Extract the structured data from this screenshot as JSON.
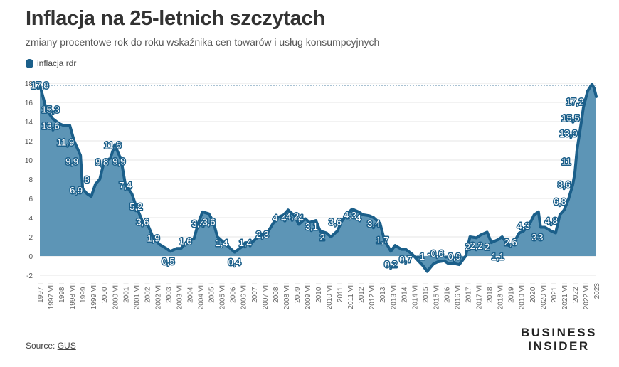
{
  "header": {
    "title": "Inflacja na 25-letnich szczytach",
    "subtitle": "zmiany procentowe rok do roku wskaźnika cen towarów i usług konsumpcyjnych",
    "legend_label": "inflacja rdr"
  },
  "footer": {
    "source_prefix": "Source: ",
    "source_link": "GUS",
    "brand_line1": "BUSINESS",
    "brand_line2": "INSIDER"
  },
  "colors": {
    "area_fill": "#5d95b6",
    "line": "#1b5f8a",
    "label_halo": "#1b5f8a",
    "grid": "#e6e6e6",
    "reference_line": "#1b5f8a"
  },
  "chart_data": {
    "type": "area",
    "ylim": [
      -2,
      18
    ],
    "yticks": [
      -2,
      0,
      2,
      4,
      6,
      8,
      10,
      12,
      14,
      16,
      18
    ],
    "reference_value": 17.8,
    "xlim": [
      1997.0,
      2023.0
    ],
    "grid": true,
    "x_tick_labels": [
      "1997 I",
      "1997 VII",
      "1998 I",
      "1998 VII",
      "1999 I",
      "1999 VII",
      "2000 I",
      "2000 VII",
      "2001 I",
      "2001 VII",
      "2002 I",
      "2002 VII",
      "2003 I",
      "2003 VII",
      "2004 I",
      "2004 VII",
      "2005 I",
      "2005 VII",
      "2006 I",
      "2006 VII",
      "2007 I",
      "2007 VII",
      "2008 I",
      "2008 VII",
      "2009 I",
      "2009 VII",
      "2010 I",
      "2010 VII",
      "2011 I",
      "2011 VII",
      "2012 I",
      "2012 VII",
      "2013 I",
      "2013 VII",
      "2014 I",
      "2014 VII",
      "2015 I",
      "2015 VII",
      "2016 I",
      "2016 VII",
      "2017 I",
      "2017 VII",
      "2018 I",
      "2018 VII",
      "2019 I",
      "2019 VII",
      "2020 I",
      "2020 VII",
      "2021 I",
      "2021 VII",
      "2022 I",
      "2022 VII",
      "2023"
    ],
    "series": [
      {
        "name": "inflacja rdr",
        "points": [
          [
            1997.0,
            17.8
          ],
          [
            1997.3,
            15.3
          ],
          [
            1997.6,
            14.3
          ],
          [
            1997.9,
            13.8
          ],
          [
            1998.1,
            13.6
          ],
          [
            1998.4,
            13.6
          ],
          [
            1998.6,
            12.0
          ],
          [
            1998.9,
            10.5
          ],
          [
            1999.0,
            7.0
          ],
          [
            1999.2,
            6.5
          ],
          [
            1999.4,
            6.2
          ],
          [
            1999.6,
            7.5
          ],
          [
            1999.8,
            8.0
          ],
          [
            2000.0,
            9.8
          ],
          [
            2000.3,
            10.2
          ],
          [
            2000.5,
            11.6
          ],
          [
            2000.8,
            10.0
          ],
          [
            2001.0,
            7.4
          ],
          [
            2001.3,
            6.5
          ],
          [
            2001.5,
            5.2
          ],
          [
            2001.8,
            3.6
          ],
          [
            2002.0,
            3.5
          ],
          [
            2002.3,
            1.9
          ],
          [
            2002.6,
            1.2
          ],
          [
            2002.9,
            0.8
          ],
          [
            2003.1,
            0.5
          ],
          [
            2003.4,
            0.8
          ],
          [
            2003.6,
            0.8
          ],
          [
            2003.9,
            1.6
          ],
          [
            2004.2,
            1.8
          ],
          [
            2004.4,
            3.4
          ],
          [
            2004.6,
            4.6
          ],
          [
            2004.9,
            4.4
          ],
          [
            2005.1,
            3.6
          ],
          [
            2005.3,
            2.0
          ],
          [
            2005.6,
            1.4
          ],
          [
            2005.9,
            0.8
          ],
          [
            2006.1,
            0.4
          ],
          [
            2006.4,
            0.9
          ],
          [
            2006.6,
            1.4
          ],
          [
            2006.9,
            1.4
          ],
          [
            2007.1,
            1.8
          ],
          [
            2007.4,
            2.3
          ],
          [
            2007.6,
            2.3
          ],
          [
            2007.9,
            3.4
          ],
          [
            2008.1,
            4.0
          ],
          [
            2008.4,
            4.3
          ],
          [
            2008.6,
            4.8
          ],
          [
            2008.9,
            4.2
          ],
          [
            2009.1,
            3.3
          ],
          [
            2009.4,
            3.9
          ],
          [
            2009.6,
            3.5
          ],
          [
            2009.9,
            3.7
          ],
          [
            2010.1,
            2.6
          ],
          [
            2010.4,
            2.4
          ],
          [
            2010.6,
            2.0
          ],
          [
            2010.9,
            2.6
          ],
          [
            2011.1,
            3.6
          ],
          [
            2011.4,
            4.5
          ],
          [
            2011.6,
            4.9
          ],
          [
            2011.9,
            4.6
          ],
          [
            2012.1,
            4.3
          ],
          [
            2012.4,
            4.2
          ],
          [
            2012.6,
            4.0
          ],
          [
            2012.9,
            3.4
          ],
          [
            2013.1,
            1.7
          ],
          [
            2013.4,
            0.5
          ],
          [
            2013.6,
            1.1
          ],
          [
            2013.9,
            0.7
          ],
          [
            2014.1,
            0.7
          ],
          [
            2014.4,
            0.2
          ],
          [
            2014.6,
            -0.3
          ],
          [
            2014.9,
            -1.0
          ],
          [
            2015.1,
            -1.6
          ],
          [
            2015.4,
            -0.8
          ],
          [
            2015.6,
            -0.6
          ],
          [
            2015.9,
            -0.5
          ],
          [
            2016.1,
            -0.8
          ],
          [
            2016.4,
            -0.8
          ],
          [
            2016.6,
            -0.9
          ],
          [
            2016.9,
            0.0
          ],
          [
            2017.1,
            2.0
          ],
          [
            2017.4,
            1.9
          ],
          [
            2017.6,
            2.2
          ],
          [
            2017.9,
            2.5
          ],
          [
            2018.1,
            1.4
          ],
          [
            2018.4,
            1.7
          ],
          [
            2018.6,
            2.0
          ],
          [
            2018.9,
            1.1
          ],
          [
            2019.1,
            1.2
          ],
          [
            2019.4,
            2.4
          ],
          [
            2019.6,
            2.6
          ],
          [
            2019.9,
            3.4
          ],
          [
            2020.1,
            4.3
          ],
          [
            2020.3,
            4.6
          ],
          [
            2020.4,
            3.0
          ],
          [
            2020.6,
            3.0
          ],
          [
            2020.9,
            2.6
          ],
          [
            2021.1,
            2.4
          ],
          [
            2021.3,
            4.3
          ],
          [
            2021.5,
            4.8
          ],
          [
            2021.7,
            5.9
          ],
          [
            2021.9,
            7.4
          ],
          [
            2022.0,
            8.6
          ],
          [
            2022.1,
            11.0
          ],
          [
            2022.3,
            13.9
          ],
          [
            2022.4,
            15.5
          ],
          [
            2022.6,
            17.2
          ],
          [
            2022.8,
            17.9
          ],
          [
            2022.9,
            17.5
          ],
          [
            2023.0,
            16.6
          ]
        ],
        "value_labels": [
          {
            "x": 1997.0,
            "y": 17.8,
            "text": "17,8"
          },
          {
            "x": 1997.5,
            "y": 15.3,
            "text": "15,3"
          },
          {
            "x": 1997.5,
            "y": 13.6,
            "text": "13,6"
          },
          {
            "x": 1998.2,
            "y": 11.9,
            "text": "11,9"
          },
          {
            "x": 1998.5,
            "y": 9.9,
            "text": "9,9"
          },
          {
            "x": 1998.7,
            "y": 6.9,
            "text": "6,9"
          },
          {
            "x": 1999.2,
            "y": 8.0,
            "text": "8"
          },
          {
            "x": 1999.9,
            "y": 9.8,
            "text": "9,8"
          },
          {
            "x": 2000.4,
            "y": 11.6,
            "text": "11,6"
          },
          {
            "x": 2000.7,
            "y": 9.9,
            "text": "9,9"
          },
          {
            "x": 2001.0,
            "y": 7.4,
            "text": "7,4"
          },
          {
            "x": 2001.5,
            "y": 5.2,
            "text": "5,2"
          },
          {
            "x": 2001.8,
            "y": 3.6,
            "text": "3,6"
          },
          {
            "x": 2002.3,
            "y": 1.9,
            "text": "1,9"
          },
          {
            "x": 2003.0,
            "y": -0.5,
            "text": "0,5"
          },
          {
            "x": 2003.8,
            "y": 1.6,
            "text": "1,6"
          },
          {
            "x": 2004.4,
            "y": 3.4,
            "text": "3,4"
          },
          {
            "x": 2004.9,
            "y": 3.6,
            "text": "3,6"
          },
          {
            "x": 2005.5,
            "y": 1.4,
            "text": "1,4"
          },
          {
            "x": 2006.1,
            "y": -0.6,
            "text": "0,4"
          },
          {
            "x": 2006.6,
            "y": 1.4,
            "text": "1,4"
          },
          {
            "x": 2007.4,
            "y": 2.3,
            "text": "2,3"
          },
          {
            "x": 2008.0,
            "y": 4.0,
            "text": "4"
          },
          {
            "x": 2008.4,
            "y": 4.0,
            "text": "4"
          },
          {
            "x": 2008.8,
            "y": 4.2,
            "text": "4,2"
          },
          {
            "x": 2009.2,
            "y": 4.0,
            "text": "4"
          },
          {
            "x": 2009.7,
            "y": 3.1,
            "text": "3,1"
          },
          {
            "x": 2010.2,
            "y": 2.0,
            "text": "2"
          },
          {
            "x": 2010.8,
            "y": 3.6,
            "text": "3,6"
          },
          {
            "x": 2011.5,
            "y": 4.3,
            "text": "4,3"
          },
          {
            "x": 2011.9,
            "y": 4.0,
            "text": "4"
          },
          {
            "x": 2012.6,
            "y": 3.4,
            "text": "3,4"
          },
          {
            "x": 2013.0,
            "y": 1.7,
            "text": "1,7"
          },
          {
            "x": 2013.4,
            "y": -0.8,
            "text": "0,2"
          },
          {
            "x": 2014.1,
            "y": -0.3,
            "text": "0,7"
          },
          {
            "x": 2014.8,
            "y": 0.0,
            "text": "-1"
          },
          {
            "x": 2015.5,
            "y": 0.3,
            "text": "-0,6"
          },
          {
            "x": 2016.3,
            "y": 0.0,
            "text": "-0,9"
          },
          {
            "x": 2017.0,
            "y": 1.0,
            "text": "2"
          },
          {
            "x": 2017.4,
            "y": 1.1,
            "text": "2,2"
          },
          {
            "x": 2017.9,
            "y": 1.0,
            "text": "2"
          },
          {
            "x": 2018.4,
            "y": 0.0,
            "text": "1,1"
          },
          {
            "x": 2019.0,
            "y": 1.5,
            "text": "2,6"
          },
          {
            "x": 2019.6,
            "y": 3.2,
            "text": "4,3"
          },
          {
            "x": 2020.1,
            "y": 2.0,
            "text": "3"
          },
          {
            "x": 2020.4,
            "y": 2.0,
            "text": "3"
          },
          {
            "x": 2020.9,
            "y": 3.7,
            "text": "4,8"
          },
          {
            "x": 2021.3,
            "y": 5.7,
            "text": "6,8"
          },
          {
            "x": 2021.5,
            "y": 7.5,
            "text": "8,6"
          },
          {
            "x": 2021.6,
            "y": 9.9,
            "text": "11"
          },
          {
            "x": 2021.7,
            "y": 12.8,
            "text": "13,9"
          },
          {
            "x": 2021.8,
            "y": 14.4,
            "text": "15,5"
          },
          {
            "x": 2022.0,
            "y": 16.1,
            "text": "17,2"
          }
        ]
      }
    ]
  }
}
